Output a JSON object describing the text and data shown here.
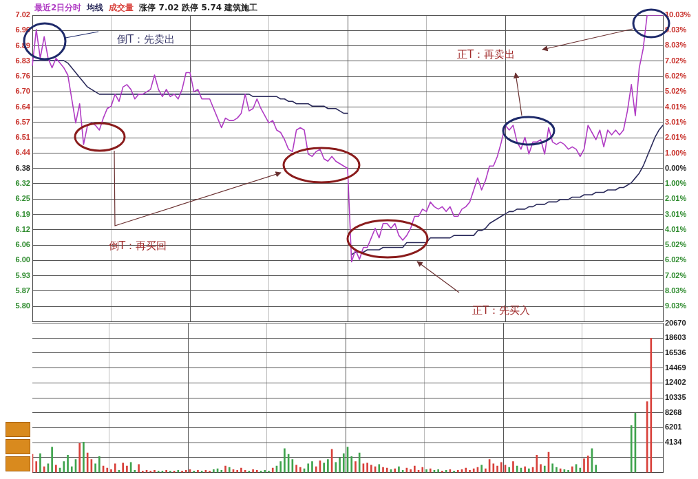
{
  "chart_data": [
    {
      "type": "line",
      "title": "涨停 7.02 跌停 5.74 建筑施工",
      "legend": "top left",
      "grid": true,
      "categories": [
        null,
        null,
        null,
        null,
        null,
        null,
        null,
        null,
        null,
        null,
        null,
        null,
        null,
        null,
        null,
        null,
        null,
        null,
        null,
        null,
        null,
        null,
        null,
        null,
        null,
        null,
        null,
        null,
        null,
        null,
        null,
        null,
        null,
        null,
        null,
        null,
        null,
        null,
        null,
        null,
        null,
        null,
        null,
        null,
        null,
        null,
        null,
        null,
        null,
        null,
        null,
        null,
        null,
        null,
        null,
        null,
        null,
        null,
        null,
        null,
        null,
        null,
        null,
        null,
        null,
        null,
        null,
        null,
        null,
        null,
        null,
        null,
        null,
        null,
        null,
        null,
        null,
        null,
        null,
        null,
        null,
        null,
        null,
        null,
        null,
        null,
        null,
        null,
        null,
        null,
        null,
        null,
        null,
        null,
        null,
        null,
        null,
        null,
        null,
        null,
        null,
        null,
        null,
        null,
        null,
        null,
        null,
        null,
        null,
        null,
        null,
        null,
        null,
        null,
        null,
        null,
        null,
        null,
        null,
        null,
        null,
        null,
        null,
        null,
        null,
        null,
        null,
        null,
        null,
        null,
        null,
        null,
        null,
        null,
        null,
        null,
        null,
        null,
        null,
        null,
        null,
        null,
        null,
        null,
        null,
        null,
        null,
        null,
        null,
        null,
        null,
        null,
        null,
        null,
        null,
        null,
        null,
        null,
        null,
        null,
        null
      ],
      "ylim": [
        5.74,
        7.02
      ],
      "yticks": [
        7.02,
        {
          "value": 6.956,
          "label": "6.96"
        },
        {
          "value": 6.892,
          "label": "6.89"
        },
        {
          "value": 6.828,
          "label": "6.83"
        },
        {
          "value": 6.764,
          "label": "6.76"
        },
        {
          "value": 6.7,
          "label": "6.70"
        },
        {
          "value": 6.636,
          "label": "6.64"
        },
        {
          "value": 6.572,
          "label": "6.57"
        },
        {
          "value": 6.508,
          "label": "6.51"
        },
        {
          "value": 6.444,
          "label": "6.44"
        },
        {
          "value": 6.38,
          "label": "6.38"
        },
        {
          "value": 6.316,
          "label": "6.32"
        },
        {
          "value": 6.252,
          "label": "6.25"
        },
        {
          "value": 6.188,
          "label": "6.19"
        },
        {
          "value": 6.124,
          "label": "6.12"
        },
        {
          "value": 6.06,
          "label": "6.06"
        },
        {
          "value": 5.996,
          "label": "6.00"
        },
        {
          "value": 5.932,
          "label": "5.93"
        },
        {
          "value": 5.868,
          "label": "5.87"
        },
        {
          "value": 5.804,
          "label": "5.80"
        }
      ],
      "y2lim": [
        -10.03,
        10.03
      ],
      "y2ticks": [
        {
          "value": 10.03,
          "label": "10.03%"
        },
        {
          "value": 9.03,
          "label": "9.03%"
        },
        {
          "value": 8.03,
          "label": "8.03%"
        },
        {
          "value": 7.02,
          "label": "7.02%"
        },
        {
          "value": 6.02,
          "label": "6.02%"
        },
        {
          "value": 5.02,
          "label": "5.02%"
        },
        {
          "value": 4.01,
          "label": "4.01%"
        },
        {
          "value": 3.01,
          "label": "3.01%"
        },
        {
          "value": 2.01,
          "label": "2.01%"
        },
        {
          "value": 1.0,
          "label": "1.00%"
        },
        {
          "value": 0,
          "label": "0.00%"
        },
        {
          "value": -1.0,
          "label": "1.00%"
        },
        {
          "value": -2.01,
          "label": "2.01%"
        },
        {
          "value": -3.01,
          "label": "3.01%"
        },
        {
          "value": -4.01,
          "label": "4.01%"
        },
        {
          "value": -5.02,
          "label": "5.02%"
        },
        {
          "value": -6.02,
          "label": "6.02%"
        },
        {
          "value": -7.02,
          "label": "7.02%"
        },
        {
          "value": -8.03,
          "label": "8.03%"
        },
        {
          "value": -9.03,
          "label": "9.03%"
        }
      ],
      "annotations": [
        "倒T：先卖出",
        "倒T：再买回",
        "正T：先买入",
        "正T：再卖出"
      ],
      "series": [
        {
          "name": "最近2日分时",
          "color": "#b03cc4",
          "values": [
            6.81,
            6.96,
            6.84,
            6.93,
            6.84,
            6.8,
            6.84,
            6.82,
            6.8,
            6.77,
            6.67,
            6.57,
            6.65,
            6.48,
            6.56,
            6.57,
            6.56,
            6.54,
            6.59,
            6.63,
            6.64,
            6.69,
            6.66,
            6.72,
            6.73,
            6.71,
            6.67,
            6.69,
            6.69,
            6.7,
            6.71,
            6.77,
            6.71,
            6.68,
            6.71,
            6.68,
            6.69,
            6.67,
            6.71,
            6.78,
            6.78,
            6.7,
            6.71,
            6.67,
            6.67,
            6.67,
            6.63,
            6.59,
            6.55,
            6.59,
            6.58,
            6.58,
            6.59,
            6.61,
            6.69,
            6.62,
            6.63,
            6.67,
            6.63,
            6.6,
            6.57,
            6.58,
            6.54,
            6.53,
            6.5,
            6.46,
            6.45,
            6.54,
            6.55,
            6.54,
            6.44,
            6.43,
            6.45,
            6.46,
            6.42,
            6.41,
            6.43,
            6.41,
            6.4,
            6.39,
            6.38,
            5.99,
            6.04,
            6.0,
            6.05,
            6.05,
            6.09,
            6.13,
            6.09,
            6.15,
            6.15,
            6.13,
            6.15,
            6.1,
            6.08,
            6.1,
            6.13,
            6.18,
            6.18,
            6.21,
            6.2,
            6.24,
            6.22,
            6.21,
            6.22,
            6.2,
            6.22,
            6.18,
            6.18,
            6.21,
            6.22,
            6.24,
            6.29,
            6.34,
            6.29,
            6.33,
            6.39,
            6.39,
            6.43,
            6.49,
            6.56,
            6.54,
            6.56,
            6.49,
            6.46,
            6.51,
            6.44,
            6.49,
            6.49,
            6.5,
            6.44,
            6.55,
            6.49,
            6.48,
            6.49,
            6.48,
            6.46,
            6.47,
            6.46,
            6.43,
            6.46,
            6.56,
            6.53,
            6.5,
            6.54,
            6.47,
            6.54,
            6.52,
            6.54,
            6.52,
            6.54,
            6.62,
            6.73,
            6.6,
            6.8,
            6.88,
            7.02,
            7.02,
            7.02,
            7.02,
            7.02
          ]
        },
        {
          "name": "均线",
          "color": "#2c2c5c",
          "values": [
            6.83,
            6.83,
            6.83,
            6.83,
            6.83,
            6.83,
            6.83,
            6.83,
            6.83,
            6.82,
            6.8,
            6.78,
            6.76,
            6.74,
            6.72,
            6.71,
            6.7,
            6.69,
            6.69,
            6.69,
            6.69,
            6.69,
            6.69,
            6.69,
            6.69,
            6.69,
            6.69,
            6.69,
            6.69,
            6.69,
            6.69,
            6.69,
            6.69,
            6.69,
            6.69,
            6.69,
            6.69,
            6.69,
            6.69,
            6.69,
            6.69,
            6.69,
            6.69,
            6.69,
            6.69,
            6.69,
            6.69,
            6.69,
            6.69,
            6.69,
            6.69,
            6.69,
            6.69,
            6.69,
            6.69,
            6.69,
            6.68,
            6.68,
            6.68,
            6.68,
            6.68,
            6.68,
            6.68,
            6.67,
            6.67,
            6.66,
            6.66,
            6.65,
            6.65,
            6.65,
            6.65,
            6.64,
            6.64,
            6.64,
            6.64,
            6.63,
            6.63,
            6.63,
            6.62,
            6.61,
            6.61,
            null,
            null,
            null,
            null,
            null,
            null,
            null,
            null,
            null,
            null,
            null,
            null,
            null,
            null,
            null,
            null,
            null,
            null,
            null,
            null,
            null,
            null,
            null,
            null,
            null,
            null,
            null,
            null,
            null,
            null,
            null,
            null,
            null,
            null,
            null,
            null,
            null,
            null,
            null,
            null,
            null,
            null,
            null,
            null,
            null,
            null,
            null,
            null,
            null,
            null,
            null,
            null,
            null,
            null,
            null,
            null,
            null,
            null,
            null,
            null,
            null,
            null,
            null,
            null,
            null,
            null,
            null,
            null,
            null,
            null,
            null,
            null,
            null,
            null,
            null,
            null,
            null,
            null,
            null,
            null
          ]
        },
        {
          "color": "#2c2c5c",
          "values": [
            null,
            null,
            null,
            null,
            null,
            null,
            null,
            null,
            null,
            null,
            null,
            null,
            null,
            null,
            null,
            null,
            null,
            null,
            null,
            null,
            null,
            null,
            null,
            null,
            null,
            null,
            null,
            null,
            null,
            null,
            null,
            null,
            null,
            null,
            null,
            null,
            null,
            null,
            null,
            null,
            null,
            null,
            null,
            null,
            null,
            null,
            null,
            null,
            null,
            null,
            null,
            null,
            null,
            null,
            null,
            null,
            null,
            null,
            null,
            null,
            null,
            null,
            null,
            null,
            null,
            null,
            null,
            null,
            null,
            null,
            null,
            null,
            null,
            null,
            null,
            null,
            null,
            null,
            null,
            null,
            null,
            6.02,
            6.03,
            6.03,
            6.03,
            6.04,
            6.04,
            6.04,
            6.04,
            6.05,
            6.05,
            6.05,
            6.05,
            6.05,
            6.05,
            6.07,
            6.07,
            6.07,
            6.07,
            6.07,
            6.07,
            6.09,
            6.09,
            6.09,
            6.09,
            6.09,
            6.09,
            6.1,
            6.1,
            6.1,
            6.1,
            6.1,
            6.1,
            6.12,
            6.12,
            6.13,
            6.15,
            6.16,
            6.17,
            6.18,
            6.19,
            6.2,
            6.2,
            6.21,
            6.21,
            6.21,
            6.22,
            6.22,
            6.23,
            6.23,
            6.23,
            6.24,
            6.24,
            6.24,
            6.25,
            6.25,
            6.25,
            6.26,
            6.26,
            6.26,
            6.27,
            6.27,
            6.27,
            6.28,
            6.28,
            6.28,
            6.29,
            6.29,
            6.29,
            6.3,
            6.3,
            6.31,
            6.32,
            6.34,
            6.36,
            6.39,
            6.43,
            6.47,
            6.51,
            6.54,
            6.56
          ]
        }
      ]
    },
    {
      "type": "bar",
      "grid": true,
      "categories": [
        null,
        null,
        null,
        null,
        null,
        null,
        null,
        null,
        null,
        null,
        null,
        null,
        null,
        null,
        null,
        null,
        null,
        null,
        null,
        null,
        null,
        null,
        null,
        null,
        null,
        null,
        null,
        null,
        null,
        null,
        null,
        null,
        null,
        null,
        null,
        null,
        null,
        null,
        null,
        null,
        null,
        null,
        null,
        null,
        null,
        null,
        null,
        null,
        null,
        null,
        null,
        null,
        null,
        null,
        null,
        null,
        null,
        null,
        null,
        null,
        null,
        null,
        null,
        null,
        null,
        null,
        null,
        null,
        null,
        null,
        null,
        null,
        null,
        null,
        null,
        null,
        null,
        null,
        null,
        null,
        null,
        null,
        null,
        null,
        null,
        null,
        null,
        null,
        null,
        null,
        null,
        null,
        null,
        null,
        null,
        null,
        null,
        null,
        null,
        null,
        null,
        null,
        null,
        null,
        null,
        null,
        null,
        null,
        null,
        null,
        null,
        null,
        null,
        null,
        null,
        null,
        null,
        null,
        null,
        null,
        null,
        null,
        null,
        null,
        null,
        null,
        null,
        null,
        null,
        null,
        null,
        null,
        null,
        null,
        null,
        null,
        null,
        null,
        null,
        null,
        null,
        null,
        null,
        null,
        null,
        null,
        null,
        null,
        null,
        null,
        null,
        null,
        null,
        null,
        null,
        null,
        null,
        null,
        null,
        null,
        null
      ],
      "ylim": [
        0,
        20670
      ],
      "yticks": [
        {
          "value": 2067,
          "label": null
        },
        4134,
        6201,
        8268,
        10335,
        12402,
        14469,
        16536,
        18603,
        20670
      ],
      "series": [
        {
          "name": "成交量",
          "color": "#d8403a",
          "colors": [
            "#d8403a",
            "#d8403a",
            "#3fa34d",
            "#d8403a",
            "#3fa34d",
            "#3fa34d",
            "#d8403a",
            "#3fa34d",
            "#3fa34d",
            "#3fa34d",
            "#3fa34d",
            "#3fa34d",
            "#d8403a",
            "#3fa34d",
            "#d8403a",
            "#d8403a",
            "#3fa34d",
            "#3fa34d",
            "#d8403a",
            "#d8403a",
            "#d8403a",
            "#d8403a",
            "#3fa34d",
            "#d8403a",
            "#d8403a",
            "#3fa34d",
            "#3fa34d",
            "#d8403a",
            "#d8403a",
            "#d8403a",
            "#d8403a",
            "#d8403a",
            "#3fa34d",
            "#3fa34d",
            "#d8403a",
            "#3fa34d",
            "#d8403a",
            "#3fa34d",
            "#d8403a",
            "#d8403a",
            "#d8403a",
            "#3fa34d",
            "#d8403a",
            "#3fa34d",
            "#d8403a",
            "#d8403a",
            "#3fa34d",
            "#3fa34d",
            "#3fa34d",
            "#d8403a",
            "#3fa34d",
            "#d8403a",
            "#d8403a",
            "#d8403a",
            "#d8403a",
            "#3fa34d",
            "#d8403a",
            "#d8403a",
            "#3fa34d",
            "#3fa34d",
            "#3fa34d",
            "#d8403a",
            "#3fa34d",
            "#3fa34d",
            "#3fa34d",
            "#3fa34d",
            "#3fa34d",
            "#d8403a",
            "#d8403a",
            "#3fa34d",
            "#3fa34d",
            "#3fa34d",
            "#d8403a",
            "#d8403a",
            "#3fa34d",
            "#3fa34d",
            "#d8403a",
            "#3fa34d",
            "#3fa34d",
            "#3fa34d",
            "#3fa34d",
            "#3fa34d",
            "#d8403a",
            "#3fa34d",
            "#d8403a",
            "#d8403a",
            "#d8403a",
            "#d8403a",
            "#3fa34d",
            "#d8403a",
            "#d8403a",
            "#3fa34d",
            "#d8403a",
            "#3fa34d",
            "#3fa34d",
            "#d8403a",
            "#d8403a",
            "#d8403a",
            "#d8403a",
            "#d8403a",
            "#3fa34d",
            "#d8403a",
            "#3fa34d",
            "#3fa34d",
            "#d8403a",
            "#3fa34d",
            "#d8403a",
            "#3fa34d",
            "#d8403a",
            "#d8403a",
            "#d8403a",
            "#d8403a",
            "#d8403a",
            "#d8403a",
            "#3fa34d",
            "#d8403a",
            "#d8403a",
            "#d8403a",
            "#d8403a",
            "#d8403a",
            "#d8403a",
            "#3fa34d",
            "#d8403a",
            "#3fa34d",
            "#3fa34d",
            "#d8403a",
            "#3fa34d",
            "#d8403a",
            "#d8403a",
            "#d8403a",
            "#3fa34d",
            "#d8403a",
            "#3fa34d",
            "#3fa34d",
            "#d8403a",
            "#3fa34d",
            "#3fa34d",
            "#d8403a",
            "#3fa34d",
            "#3fa34d",
            "#d8403a",
            "#d8403a",
            "#3fa34d",
            "#3fa34d",
            "#d8403a",
            "#3fa34d",
            "#d8403a",
            "#3fa34d",
            "#d8403a",
            "#3fa34d",
            "#d8403a",
            "#d8403a",
            "#3fa34d",
            "#3fa34d",
            "#d8403a",
            "#d8403a",
            "#d8403a",
            "#d8403a",
            "#d8403a",
            "#d8403a",
            "#d8403a"
          ],
          "values": [
            2500,
            1500,
            2600,
            800,
            1200,
            3500,
            1000,
            600,
            1500,
            2400,
            800,
            1800,
            4000,
            4200,
            2700,
            1800,
            1200,
            2200,
            900,
            600,
            400,
            1200,
            300,
            1300,
            900,
            1400,
            300,
            1100,
            200,
            300,
            200,
            300,
            200,
            200,
            300,
            200,
            200,
            300,
            200,
            300,
            400,
            200,
            300,
            200,
            300,
            200,
            400,
            500,
            300,
            900,
            700,
            400,
            300,
            600,
            300,
            200,
            400,
            300,
            200,
            300,
            200,
            600,
            900,
            1500,
            3300,
            2500,
            1800,
            1000,
            700,
            500,
            1200,
            1500,
            800,
            1600,
            1300,
            1800,
            3200,
            1400,
            2000,
            2600,
            3500,
            2200,
            1500,
            2700,
            1200,
            1300,
            1000,
            800,
            1100,
            700,
            600,
            400,
            500,
            800,
            300,
            600,
            400,
            900,
            300,
            700,
            400,
            500,
            300,
            400,
            200,
            300,
            400,
            200,
            300,
            400,
            600,
            300,
            500,
            700,
            1000,
            500,
            1800,
            1200,
            900,
            1400,
            1000,
            700,
            1500,
            900,
            600,
            800,
            500,
            700,
            2400,
            1100,
            900,
            2800,
            1200,
            700,
            500,
            400,
            300,
            800,
            1100,
            600,
            1900,
            2300,
            3300,
            1000,
            null,
            null,
            null,
            null,
            null,
            null,
            null,
            null,
            6500,
            8200,
            null,
            null,
            9800,
            18600,
            null,
            null,
            null
          ]
        }
      ]
    }
  ]
}
